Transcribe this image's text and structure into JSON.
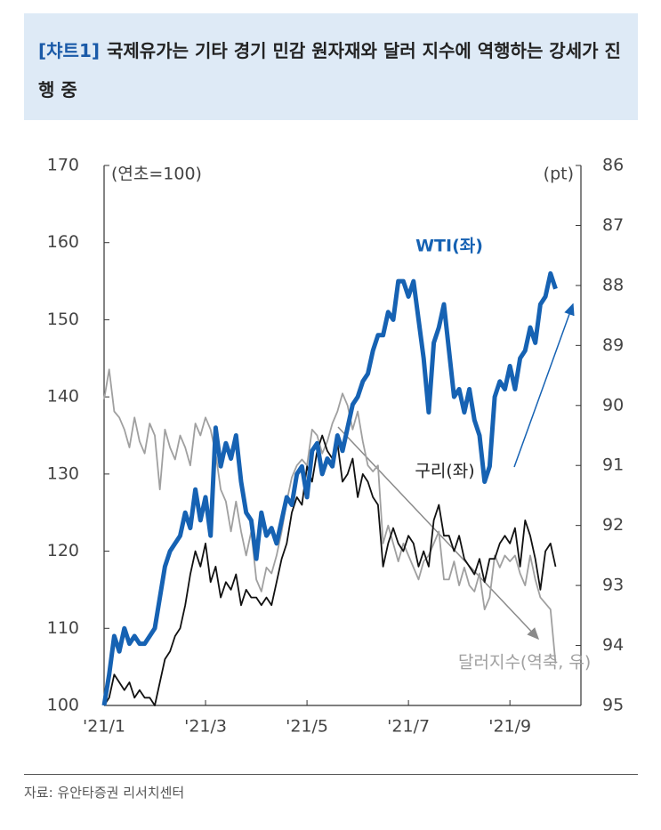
{
  "chart_data": {
    "type": "line",
    "title_label": "[챠트1]",
    "title": "국제유가는 기타 경기 민감 원자재와 달러 지수에 역행하는 강세가 진행 중",
    "y_unit": "(연초=100)",
    "y2_unit": "(pt)",
    "source": "자료: 유안타증권 리서치센터",
    "x": [
      1,
      1.1,
      1.2,
      1.3,
      1.4,
      1.5,
      1.6,
      1.7,
      1.8,
      1.9,
      2,
      2.1,
      2.2,
      2.3,
      2.4,
      2.5,
      2.6,
      2.7,
      2.8,
      2.9,
      3,
      3.1,
      3.2,
      3.3,
      3.4,
      3.5,
      3.6,
      3.7,
      3.8,
      3.9,
      4,
      4.1,
      4.2,
      4.3,
      4.4,
      4.5,
      4.6,
      4.7,
      4.8,
      4.9,
      5,
      5.1,
      5.2,
      5.3,
      5.4,
      5.5,
      5.6,
      5.7,
      5.8,
      5.9,
      6,
      6.1,
      6.2,
      6.3,
      6.4,
      6.5,
      6.6,
      6.7,
      6.8,
      6.9,
      7,
      7.1,
      7.2,
      7.3,
      7.4,
      7.5,
      7.6,
      7.7,
      7.8,
      7.9,
      8,
      8.1,
      8.2,
      8.3,
      8.4,
      8.5,
      8.6,
      8.7,
      8.8,
      8.9,
      9,
      9.1,
      9.2,
      9.3,
      9.4,
      9.5,
      9.6,
      9.7,
      9.8,
      9.9
    ],
    "xlim": [
      1,
      10.4
    ],
    "xticks": [
      {
        "value": 1,
        "label": "'21/1"
      },
      {
        "value": 3,
        "label": "'21/3"
      },
      {
        "value": 5,
        "label": "'21/5"
      },
      {
        "value": 7,
        "label": "'21/7"
      },
      {
        "value": 9,
        "label": "'21/9"
      }
    ],
    "ylim": [
      100,
      170
    ],
    "yticks": [
      100,
      110,
      120,
      130,
      140,
      150,
      160,
      170
    ],
    "y2lim": [
      95,
      86
    ],
    "y2ticks": [
      86,
      87,
      88,
      89,
      90,
      91,
      92,
      93,
      94,
      95
    ],
    "series": [
      {
        "name": "달러지수(역축, 우)",
        "color": "#a0a0a0",
        "axis": "y2",
        "values": [
          89.9,
          89.4,
          90.1,
          90.2,
          90.4,
          90.7,
          90.2,
          90.6,
          90.8,
          90.3,
          90.5,
          91.4,
          90.4,
          90.7,
          90.9,
          90.5,
          90.7,
          91.0,
          90.3,
          90.5,
          90.2,
          90.4,
          90.8,
          91.4,
          91.6,
          92.1,
          91.6,
          92.1,
          92.5,
          92.1,
          92.9,
          93.1,
          92.7,
          92.8,
          92.5,
          92.1,
          91.6,
          91.2,
          91.0,
          90.9,
          91.0,
          90.4,
          90.5,
          90.8,
          90.6,
          90.3,
          90.1,
          89.8,
          90.0,
          90.4,
          90.1,
          90.6,
          91.0,
          91.1,
          91.0,
          92.3,
          92.0,
          92.3,
          92.6,
          92.3,
          92.5,
          92.7,
          92.9,
          92.6,
          92.5,
          92.3,
          92.1,
          92.9,
          92.9,
          92.6,
          93.0,
          92.7,
          93.0,
          93.1,
          92.8,
          93.4,
          93.2,
          92.5,
          92.7,
          92.5,
          92.6,
          92.5,
          92.8,
          93.0,
          92.5,
          92.9,
          93.2,
          93.3,
          93.4,
          94.3
        ]
      },
      {
        "name": "구리(좌)",
        "color": "#111111",
        "values": [
          100,
          101,
          104,
          103,
          102,
          103,
          101,
          102,
          101,
          101,
          100,
          103,
          106,
          107,
          109,
          110,
          113,
          117,
          120,
          118,
          121,
          116,
          118,
          114,
          116,
          115,
          117,
          113,
          115,
          114,
          114,
          113,
          114,
          113,
          116,
          119,
          121,
          125,
          127,
          126,
          131,
          129,
          133,
          135,
          133,
          132,
          134,
          129,
          130,
          132,
          127,
          130,
          129,
          127,
          126,
          118,
          121,
          123,
          121,
          120,
          122,
          121,
          118,
          120,
          118,
          124,
          126,
          122,
          122,
          120,
          122,
          119,
          118,
          117,
          119,
          116,
          119,
          119,
          121,
          122,
          121,
          123,
          118,
          124,
          122,
          119,
          115,
          120,
          121,
          118
        ]
      },
      {
        "name": "WTI(좌)",
        "color": "#1662b3",
        "values": [
          100,
          104,
          109,
          107,
          110,
          108,
          109,
          108,
          108,
          109,
          110,
          114,
          118,
          120,
          121,
          122,
          125,
          123,
          128,
          124,
          127,
          122,
          136,
          131,
          134,
          132,
          135,
          129,
          125,
          124,
          119,
          125,
          122,
          123,
          121,
          124,
          127,
          126,
          130,
          131,
          127,
          133,
          134,
          130,
          132,
          131,
          135,
          133,
          136,
          139,
          140,
          142,
          143,
          146,
          148,
          148,
          151,
          150,
          155,
          155,
          153,
          155,
          150,
          145,
          138,
          147,
          149,
          152,
          146,
          140,
          141,
          138,
          141,
          137,
          135,
          129,
          131,
          140,
          142,
          141,
          144,
          141,
          145,
          146,
          149,
          147,
          152,
          153,
          156,
          154
        ]
      }
    ]
  }
}
